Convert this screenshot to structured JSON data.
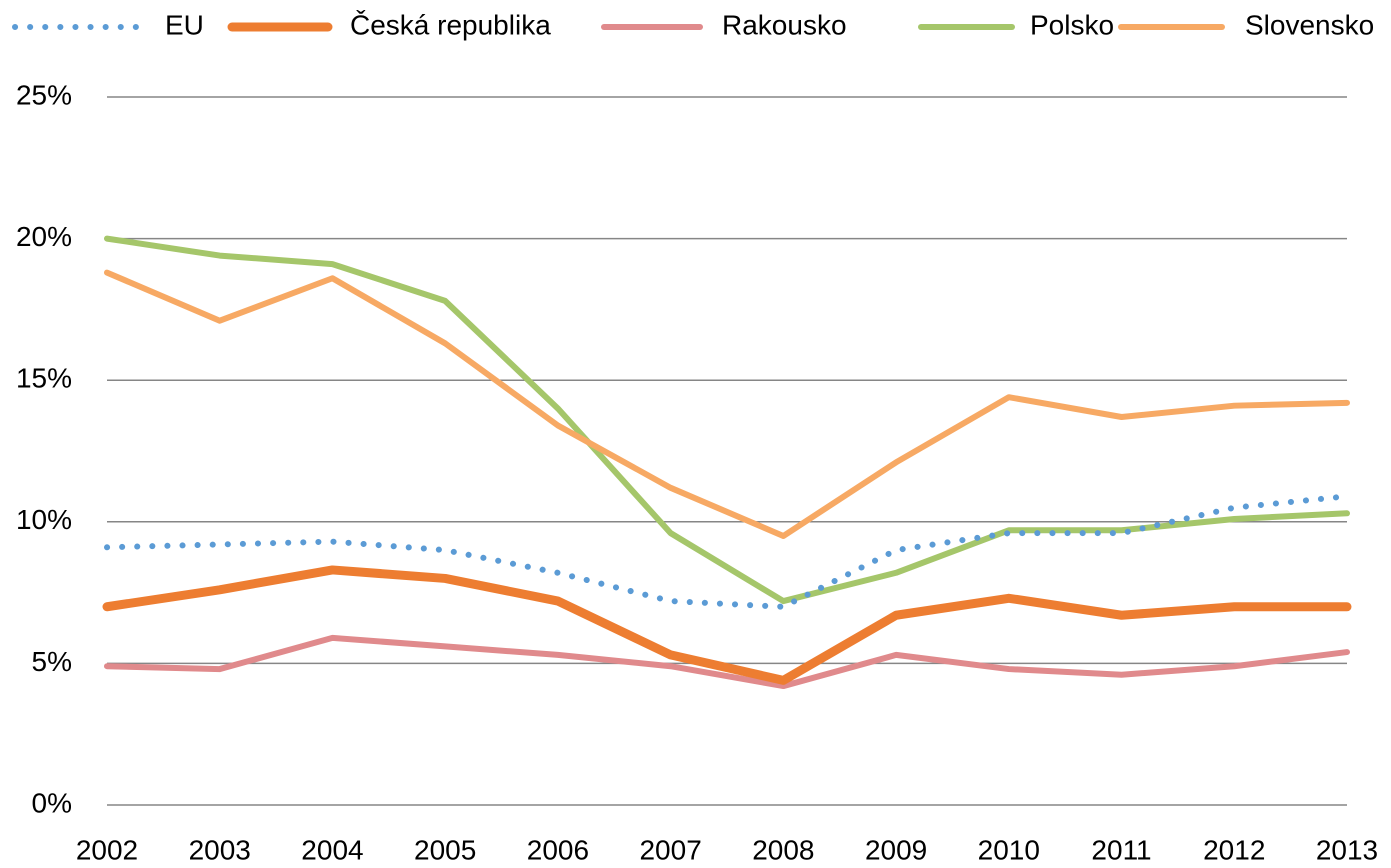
{
  "chart_data": {
    "type": "line",
    "categories": [
      "2002",
      "2003",
      "2004",
      "2005",
      "2006",
      "2007",
      "2008",
      "2009",
      "2010",
      "2011",
      "2012",
      "2013"
    ],
    "series": [
      {
        "name": "EU",
        "color": "#5b9bd5",
        "dash": "dotted",
        "values": [
          9.1,
          9.2,
          9.3,
          9.0,
          8.2,
          7.2,
          7.0,
          9.0,
          9.6,
          9.6,
          10.5,
          10.9
        ]
      },
      {
        "name": "Česká republika",
        "color": "#ed7d31",
        "values": [
          7.0,
          7.6,
          8.3,
          8.0,
          7.2,
          5.3,
          4.4,
          6.7,
          7.3,
          6.7,
          7.0,
          7.0
        ]
      },
      {
        "name": "Rakousko",
        "color": "#e08a8c",
        "values": [
          4.9,
          4.8,
          5.9,
          5.6,
          5.3,
          4.9,
          4.2,
          5.3,
          4.8,
          4.6,
          4.9,
          5.4
        ]
      },
      {
        "name": "Polsko",
        "color": "#a5c66a",
        "values": [
          20.0,
          19.4,
          19.1,
          17.8,
          14.0,
          9.6,
          7.2,
          8.2,
          9.7,
          9.7,
          10.1,
          10.3
        ]
      },
      {
        "name": "Slovensko",
        "color": "#f7a964",
        "values": [
          18.8,
          17.1,
          18.6,
          16.3,
          13.4,
          11.2,
          9.5,
          12.1,
          14.4,
          13.7,
          14.1,
          14.2
        ]
      }
    ],
    "ylim": [
      0,
      25
    ],
    "yticks": [
      {
        "value": 0,
        "label": "0%"
      },
      {
        "value": 5,
        "label": "5%"
      },
      {
        "value": 10,
        "label": "10%"
      },
      {
        "value": 15,
        "label": "15%"
      },
      {
        "value": 20,
        "label": "20%"
      },
      {
        "value": 25,
        "label": "25%"
      }
    ],
    "grid": true,
    "legend": "top"
  }
}
